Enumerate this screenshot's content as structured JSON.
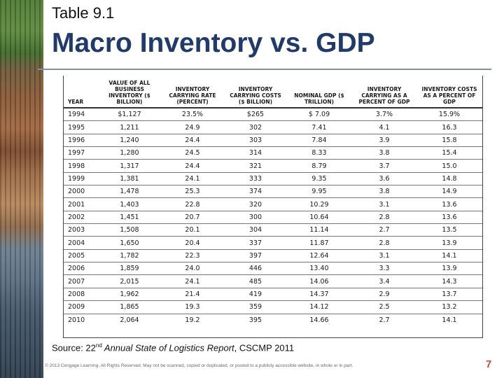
{
  "slide": {
    "pre_title": "Table 9.1",
    "title": "Macro Inventory vs. GDP",
    "source_prefix": "Source: 22",
    "source_sup": "nd",
    "source_italic": " Annual State of Logistics Report",
    "source_suffix": ", CSCMP 2011",
    "footer": "© 2013 Cengage Learning. All Rights Reserved. May not be scanned, copied or duplicated, or posted to a publicly accessible website, in whole or in part.",
    "page_number": "7"
  },
  "table": {
    "headers": [
      "YEAR",
      "VALUE OF ALL BUSINESS INVENTORY ($ BILLION)",
      "INVENTORY CARRYING RATE (PERCENT)",
      "INVENTORY CARRYING COSTS ($ BILLION)",
      "NOMINAL GDP ($ TRILLION)",
      "INVENTORY CARRYING AS A PERCENT OF GDP",
      "INVENTORY COSTS AS A PERCENT OF GDP"
    ],
    "rows": [
      [
        "1994",
        "$1,127",
        "23.5%",
        "$265",
        "$ 7.09",
        "3.7%",
        "15.9%"
      ],
      [
        "1995",
        "1,211",
        "24.9",
        "302",
        "7.41",
        "4.1",
        "16.3"
      ],
      [
        "1996",
        "1,240",
        "24.4",
        "303",
        "7.84",
        "3.9",
        "15.8"
      ],
      [
        "1997",
        "1,280",
        "24.5",
        "314",
        "8.33",
        "3.8",
        "15.4"
      ],
      [
        "1998",
        "1,317",
        "24.4",
        "321",
        "8.79",
        "3.7",
        "15.0"
      ],
      [
        "1999",
        "1,381",
        "24.1",
        "333",
        "9.35",
        "3.6",
        "14.8"
      ],
      [
        "2000",
        "1,478",
        "25.3",
        "374",
        "9.95",
        "3.8",
        "14.9"
      ],
      [
        "2001",
        "1,403",
        "22.8",
        "320",
        "10.29",
        "3.1",
        "13.6"
      ],
      [
        "2002",
        "1,451",
        "20.7",
        "300",
        "10.64",
        "2.8",
        "13.6"
      ],
      [
        "2003",
        "1,508",
        "20.1",
        "304",
        "11.14",
        "2.7",
        "13.5"
      ],
      [
        "2004",
        "1,650",
        "20.4",
        "337",
        "11.87",
        "2.8",
        "13.9"
      ],
      [
        "2005",
        "1,782",
        "22.3",
        "397",
        "12.64",
        "3.1",
        "14.1"
      ],
      [
        "2006",
        "1,859",
        "24.0",
        "446",
        "13.40",
        "3.3",
        "13.9"
      ],
      [
        "2007",
        "2,015",
        "24.1",
        "485",
        "14.06",
        "3.4",
        "14.3"
      ],
      [
        "2008",
        "1,962",
        "21.4",
        "419",
        "14.37",
        "2.9",
        "13.7"
      ],
      [
        "2009",
        "1,865",
        "19.3",
        "359",
        "14.12",
        "2.5",
        "13.2"
      ],
      [
        "2010",
        "2,064",
        "19.2",
        "395",
        "14.66",
        "2.7",
        "14.1"
      ]
    ]
  }
}
